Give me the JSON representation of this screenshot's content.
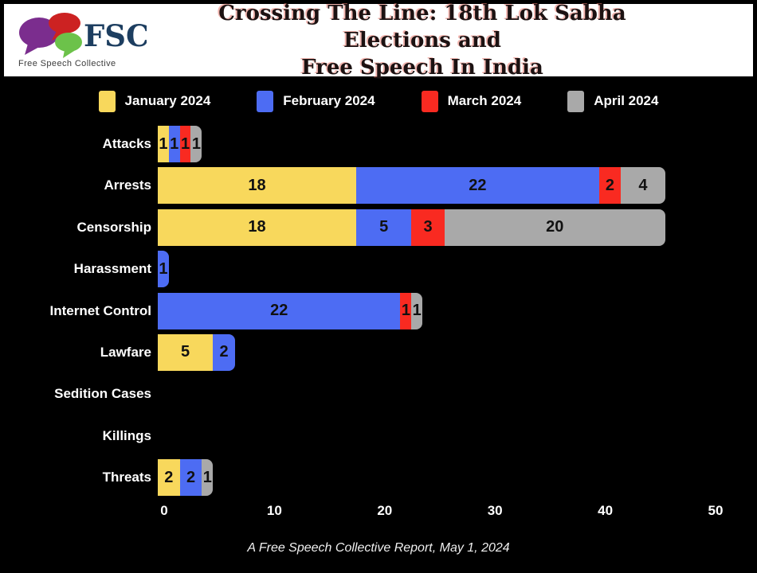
{
  "header": {
    "logo_text": "FSC",
    "logo_subtext": "Free Speech Collective",
    "title_line1": "Crossing The Line: 18th Lok Sabha Elections and",
    "title_line2": "Free Speech In India"
  },
  "colors": {
    "january": "#F8D85C",
    "february": "#4D6CF3",
    "march": "#F92A21",
    "april": "#A9A9A9",
    "background": "#000000",
    "header_background": "#FFFFFF",
    "title_text": "#1C1212"
  },
  "chart_data": {
    "type": "bar",
    "orientation": "horizontal",
    "stacked": true,
    "grid": false,
    "legend_position": "top",
    "xlabel": "",
    "ylabel": "",
    "xlim": [
      0,
      50
    ],
    "x_ticks": [
      0,
      10,
      20,
      30,
      40,
      50
    ],
    "categories": [
      "Attacks",
      "Arrests",
      "Censorship",
      "Harassment",
      "Internet Control",
      "Lawfare",
      "Sedition Cases",
      "Killings",
      "Threats"
    ],
    "series": [
      {
        "name": "January 2024",
        "color": "#F8D85C",
        "values": [
          1,
          18,
          18,
          0,
          0,
          5,
          0,
          0,
          2
        ]
      },
      {
        "name": "February 2024",
        "color": "#4D6CF3",
        "values": [
          1,
          22,
          5,
          1,
          22,
          2,
          0,
          0,
          2
        ]
      },
      {
        "name": "March 2024",
        "color": "#F92A21",
        "values": [
          1,
          2,
          3,
          0,
          1,
          0,
          0,
          0,
          0
        ]
      },
      {
        "name": "April 2024",
        "color": "#A9A9A9",
        "values": [
          1,
          4,
          20,
          0,
          1,
          0,
          0,
          0,
          1
        ]
      }
    ]
  },
  "footer": {
    "caption": "A Free Speech Collective Report, May 1, 2024"
  }
}
